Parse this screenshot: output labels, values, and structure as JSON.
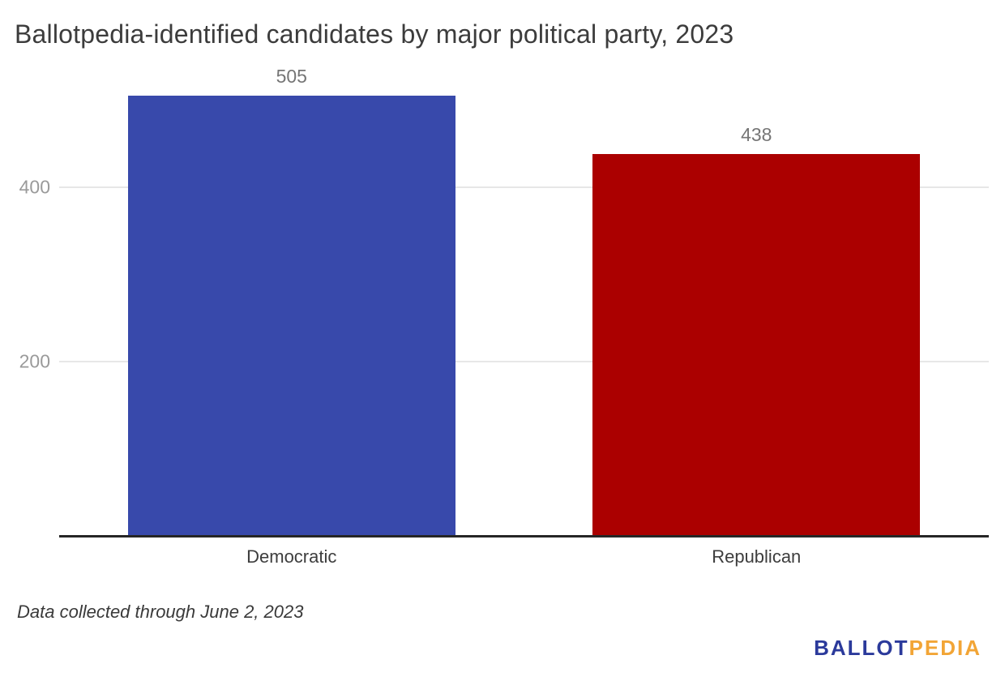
{
  "page": {
    "background": "#ffffff",
    "note": "Data collected through June 2, 2023"
  },
  "chart_data": {
    "type": "bar",
    "title": "Ballotpedia-identified candidates by major political party, 2023",
    "categories": [
      "Democratic",
      "Republican"
    ],
    "values": [
      505,
      438
    ],
    "bar_colors": [
      "#3849ab",
      "#ab0000"
    ],
    "value_labels": [
      "505",
      "438"
    ],
    "xlabel": "",
    "ylabel": "",
    "ylim": [
      0,
      533
    ],
    "yticks": [
      200,
      400
    ],
    "grid": "horizontal-only",
    "legend": "none",
    "annotation": "Data collected through June 2, 2023",
    "colors": {
      "gridline": "#e7e7e7",
      "axis_line": "#262626",
      "tick_label": "#9a9a9a",
      "value_label": "#757575",
      "category_label": "#3d3d3d",
      "title": "#3c3c3c"
    }
  },
  "logo": {
    "part1": "BALLOT",
    "part2": "PEDIA",
    "part1_color": "#2b3a9b",
    "part2_color": "#f2a536"
  }
}
